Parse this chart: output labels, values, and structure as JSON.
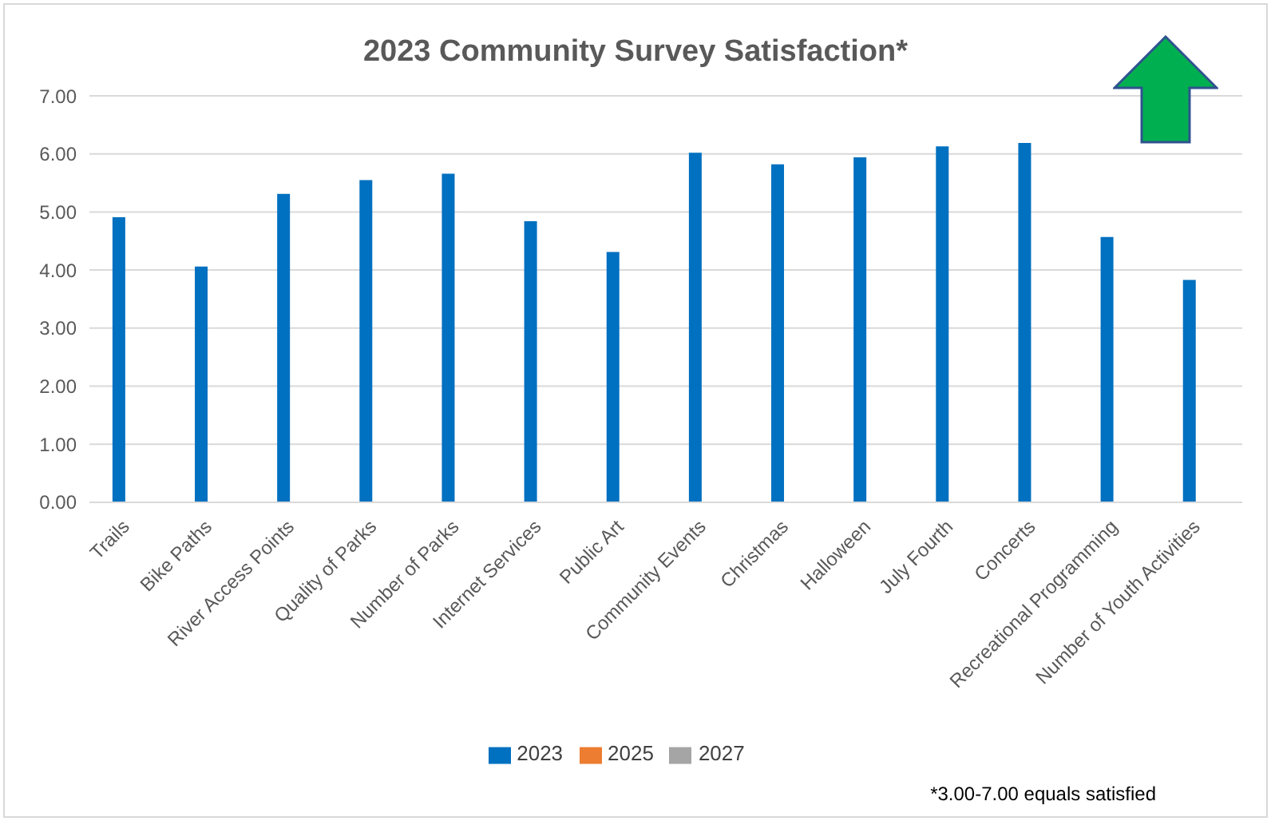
{
  "chart_data": {
    "type": "bar",
    "title": "2023 Community Survey Satisfaction*",
    "categories": [
      "Trails",
      "Bike Paths",
      "River Access Points",
      "Quality of Parks",
      "Number of Parks",
      "Internet Services",
      "Public Art",
      "Community Events",
      "Christmas",
      "Halloween",
      "July Fourth",
      "Concerts",
      "Recreational Programming",
      "Number of Youth Activities"
    ],
    "series": [
      {
        "name": "2023",
        "color": "#0070c0",
        "values": [
          4.91,
          4.06,
          5.31,
          5.55,
          5.66,
          4.84,
          4.31,
          6.02,
          5.82,
          5.94,
          6.13,
          6.19,
          4.57,
          3.83
        ]
      },
      {
        "name": "2025",
        "color": "#ed7d31",
        "values": [
          null,
          null,
          null,
          null,
          null,
          null,
          null,
          null,
          null,
          null,
          null,
          null,
          null,
          null
        ]
      },
      {
        "name": "2027",
        "color": "#a5a5a5",
        "values": [
          null,
          null,
          null,
          null,
          null,
          null,
          null,
          null,
          null,
          null,
          null,
          null,
          null,
          null
        ]
      }
    ],
    "ylim": [
      0,
      7
    ],
    "yticks": [
      {
        "value": 0,
        "label": "0.00"
      },
      {
        "value": 1,
        "label": "1.00"
      },
      {
        "value": 2,
        "label": "2.00"
      },
      {
        "value": 3,
        "label": "3.00"
      },
      {
        "value": 4,
        "label": "4.00"
      },
      {
        "value": 5,
        "label": "5.00"
      },
      {
        "value": 6,
        "label": "6.00"
      },
      {
        "value": 7,
        "label": "7.00"
      }
    ],
    "grid": "y",
    "legend": "bottom",
    "annotations": [
      "*3.00-7.00 equals satisfied"
    ]
  }
}
